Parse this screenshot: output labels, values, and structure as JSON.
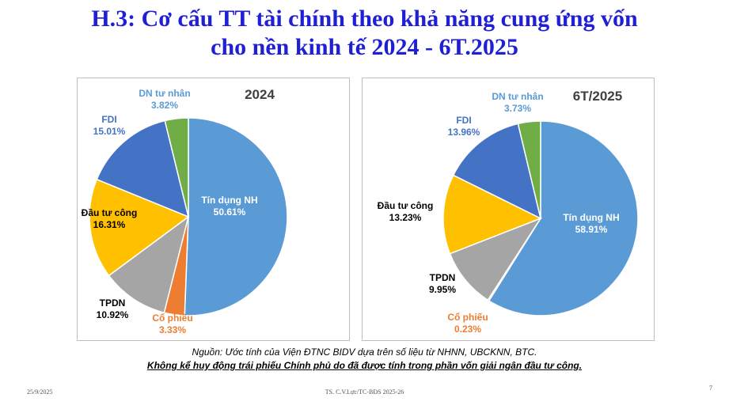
{
  "title": {
    "line1": "H.3: Cơ cấu TT tài chính theo khả năng cung ứng vốn",
    "line2": "cho nền kinh tế 2024 - 6T.2025"
  },
  "colors": {
    "Tín dụng NH": "#5b9bd5",
    "Cổ phiếu": "#ed7d31",
    "TPDN": "#a5a5a5",
    "Đầu tư công": "#ffc000",
    "FDI": "#4472c4",
    "DN tư nhân": "#70ad47"
  },
  "chart_data": [
    {
      "type": "pie",
      "title": "2024",
      "slices": [
        {
          "label": "Tín dụng NH",
          "value": 50.61,
          "value_label": "50.61%"
        },
        {
          "label": "Cổ phiếu",
          "value": 3.33,
          "value_label": "3.33%"
        },
        {
          "label": "TPDN",
          "value": 10.92,
          "value_label": "10.92%"
        },
        {
          "label": "Đầu tư công",
          "value": 16.31,
          "value_label": "16.31%"
        },
        {
          "label": "FDI",
          "value": 15.01,
          "value_label": "15.01%"
        },
        {
          "label": "DN tư nhân",
          "value": 3.82,
          "value_label": "3.82%"
        }
      ]
    },
    {
      "type": "pie",
      "title": "6T/2025",
      "slices": [
        {
          "label": "Tín dụng NH",
          "value": 58.91,
          "value_label": "58.91%"
        },
        {
          "label": "Cổ phiếu",
          "value": 0.23,
          "value_label": "0.23%"
        },
        {
          "label": "TPDN",
          "value": 9.95,
          "value_label": "9.95%"
        },
        {
          "label": "Đầu tư công",
          "value": 13.23,
          "value_label": "13.23%"
        },
        {
          "label": "FDI",
          "value": 13.96,
          "value_label": "13.96%"
        },
        {
          "label": "DN tư nhân",
          "value": 3.73,
          "value_label": "3.73%"
        }
      ]
    }
  ],
  "source": "Nguồn: Ước tính của Viện ĐTNC BIDV dựa trên số liệu từ NHNN, UBCKNN, BTC.",
  "note": "Không kể huy động trái phiếu Chính phủ do đã được tính trong phần vốn giải ngân đầu tư công.",
  "footer": {
    "date": "25/9/2025",
    "author": "TS. C.V.Lực/TC-BĐS 2025-26",
    "page": "7"
  }
}
